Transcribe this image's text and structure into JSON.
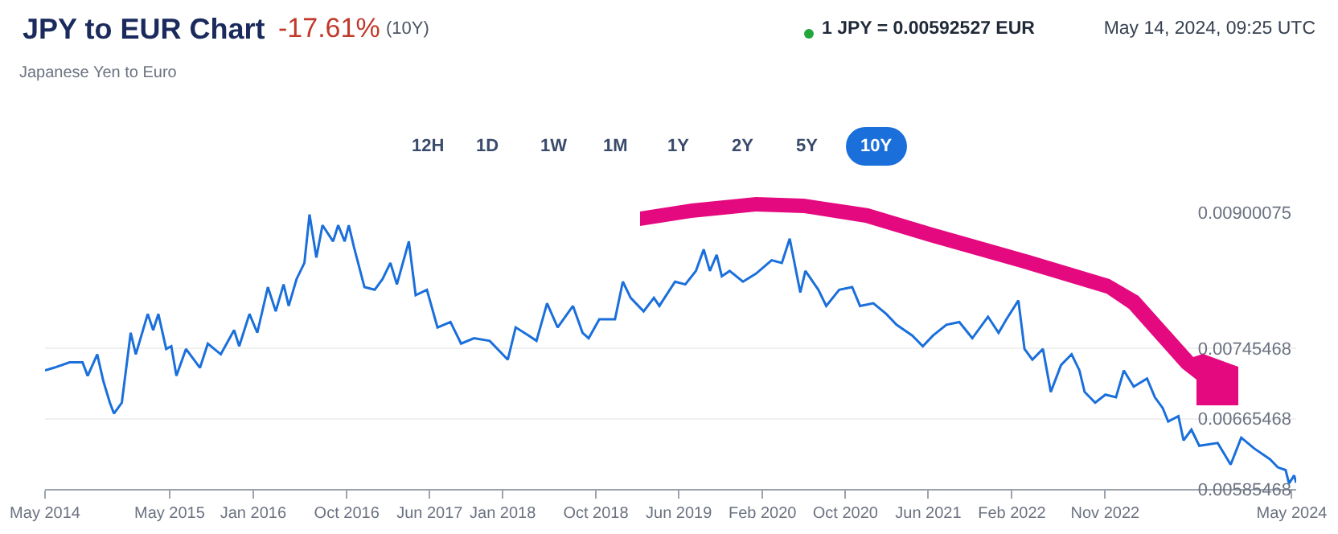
{
  "chart_data": {
    "type": "line",
    "title": "JPY to EUR Chart",
    "subtitle": "Japanese Yen to Euro",
    "annotations": [
      "-17.61%",
      "(10Y)",
      "1 JPY = 0.00592527 EUR",
      "May 14, 2024, 09:25 UTC",
      "12H",
      "1D",
      "1W",
      "1M",
      "1Y",
      "2Y",
      "5Y",
      "10Y"
    ],
    "x": [
      "2014-05-01",
      "2014-05-27",
      "2014-07-12",
      "2014-08-19",
      "2014-09-03",
      "2014-10-01",
      "2014-10-19",
      "2014-11-07",
      "2014-11-19",
      "2014-12-12",
      "2015-01-07",
      "2015-01-22",
      "2015-02-26",
      "2015-03-14",
      "2015-03-29",
      "2015-04-21",
      "2015-05-06",
      "2015-05-21",
      "2015-06-18",
      "2015-07-29",
      "2015-08-21",
      "2015-09-28",
      "2015-11-06",
      "2015-11-21",
      "2015-12-21",
      "2016-01-13",
      "2016-02-13",
      "2016-03-07",
      "2016-03-30",
      "2016-04-14",
      "2016-05-07",
      "2016-05-30",
      "2016-06-14",
      "2016-07-04",
      "2016-07-22",
      "2016-08-22",
      "2016-09-06",
      "2016-09-25",
      "2016-10-07",
      "2016-10-22",
      "2016-11-22",
      "2016-12-22",
      "2017-01-14",
      "2017-02-06",
      "2017-02-25",
      "2017-04-01",
      "2017-04-21",
      "2017-05-24",
      "2017-06-24",
      "2017-08-01",
      "2017-09-01",
      "2017-10-09",
      "2017-11-24",
      "2018-01-16",
      "2018-02-08",
      "2018-03-18",
      "2018-04-10",
      "2018-05-11",
      "2018-06-11",
      "2018-07-26",
      "2018-08-23",
      "2018-09-10",
      "2018-10-11",
      "2018-11-26",
      "2018-12-19",
      "2019-01-11",
      "2019-02-18",
      "2019-03-20",
      "2019-04-05",
      "2019-05-21",
      "2019-06-20",
      "2019-07-21",
      "2019-08-13",
      "2019-08-31",
      "2019-09-20",
      "2019-10-05",
      "2019-10-28",
      "2019-12-06",
      "2020-01-13",
      "2020-02-28",
      "2020-03-29",
      "2020-04-21",
      "2020-05-22",
      "2020-06-06",
      "2020-07-14",
      "2020-08-06",
      "2020-09-13",
      "2020-10-21",
      "2020-11-13",
      "2020-12-22",
      "2021-01-29",
      "2021-02-28",
      "2021-04-15",
      "2021-05-16",
      "2021-06-15",
      "2021-07-24",
      "2021-08-31",
      "2021-10-08",
      "2021-11-23",
      "2021-12-24",
      "2022-01-16",
      "2022-02-20",
      "2022-03-10",
      "2022-04-02",
      "2022-05-03",
      "2022-05-26",
      "2022-06-25",
      "2022-07-26",
      "2022-08-18",
      "2022-09-02",
      "2022-10-03",
      "2022-11-02",
      "2022-12-03",
      "2022-12-26",
      "2023-01-24",
      "2023-03-04",
      "2023-03-27",
      "2023-04-19",
      "2023-05-05",
      "2023-06-04",
      "2023-06-19",
      "2023-07-12",
      "2023-08-04",
      "2023-09-27",
      "2023-11-04",
      "2023-12-05",
      "2024-01-12",
      "2024-02-27",
      "2024-03-21",
      "2024-04-13",
      "2024-04-23",
      "2024-05-08",
      "2024-05-14"
    ],
    "series": [
      {
        "color": "#1a6fdb",
        "values": [
          0.007202,
          0.007233,
          0.007294,
          0.007294,
          0.007141,
          0.007386,
          0.00708,
          0.006835,
          0.006713,
          0.006835,
          0.007631,
          0.007386,
          0.007845,
          0.007661,
          0.007845,
          0.007447,
          0.007478,
          0.007141,
          0.007447,
          0.007233,
          0.007508,
          0.007386,
          0.007661,
          0.007478,
          0.007845,
          0.007631,
          0.00815,
          0.007875,
          0.008181,
          0.007936,
          0.008242,
          0.008426,
          0.008976,
          0.008487,
          0.008854,
          0.00867,
          0.008854,
          0.00867,
          0.008854,
          0.008609,
          0.00815,
          0.00812,
          0.008242,
          0.008426,
          0.008181,
          0.00867,
          0.008059,
          0.00812,
          0.007692,
          0.007753,
          0.007508,
          0.007569,
          0.007539,
          0.007325,
          0.007692,
          0.0076,
          0.007539,
          0.007967,
          0.007692,
          0.007936,
          0.007631,
          0.007569,
          0.007784,
          0.007784,
          0.008212,
          0.008028,
          0.007875,
          0.008028,
          0.007936,
          0.008212,
          0.008181,
          0.008334,
          0.008579,
          0.008334,
          0.008518,
          0.008273,
          0.008334,
          0.008212,
          0.008303,
          0.008456,
          0.008426,
          0.008701,
          0.008089,
          0.008334,
          0.00812,
          0.007936,
          0.00812,
          0.00815,
          0.007936,
          0.007967,
          0.007845,
          0.007722,
          0.0076,
          0.007478,
          0.0076,
          0.007722,
          0.007753,
          0.007569,
          0.007814,
          0.007631,
          0.007784,
          0.007998,
          0.007447,
          0.007325,
          0.007447,
          0.006958,
          0.007264,
          0.007386,
          0.007202,
          0.006958,
          0.006835,
          0.006927,
          0.006897,
          0.007202,
          0.007019,
          0.007111,
          0.006897,
          0.006774,
          0.006621,
          0.006682,
          0.006407,
          0.006529,
          0.006346,
          0.006377,
          0.006132,
          0.006438,
          0.006315,
          0.006193,
          0.006101,
          0.00607,
          0.005917,
          0.006009,
          0.005925
        ]
      }
    ],
    "xlim": [
      "2014-05-01",
      "2024-05-14"
    ],
    "xticks": [
      {
        "value": "2014-05",
        "label": "May 2014"
      },
      {
        "value": "2015-05",
        "label": "May 2015"
      },
      {
        "value": "2016-01",
        "label": "Jan 2016"
      },
      {
        "value": "2016-10",
        "label": "Oct 2016"
      },
      {
        "value": "2017-06",
        "label": "Jun 2017"
      },
      {
        "value": "2018-01",
        "label": "Jan 2018"
      },
      {
        "value": "2018-10",
        "label": "Oct 2018"
      },
      {
        "value": "2019-06",
        "label": "Jun 2019"
      },
      {
        "value": "2020-02",
        "label": "Feb 2020"
      },
      {
        "value": "2020-10",
        "label": "Oct 2020"
      },
      {
        "value": "2021-06",
        "label": "Jun 2021"
      },
      {
        "value": "2022-02",
        "label": "Feb 2022"
      },
      {
        "value": "2022-11",
        "label": "Nov 2022"
      },
      {
        "value": "2024-05",
        "label": "May 2024"
      }
    ],
    "ylim": [
      0.00585468,
      0.00900075
    ],
    "yticks": [
      0.00585468,
      0.00665468,
      0.00745468,
      0.00900075
    ],
    "grid": "y",
    "marker": "none",
    "line_style": "solid"
  }
}
